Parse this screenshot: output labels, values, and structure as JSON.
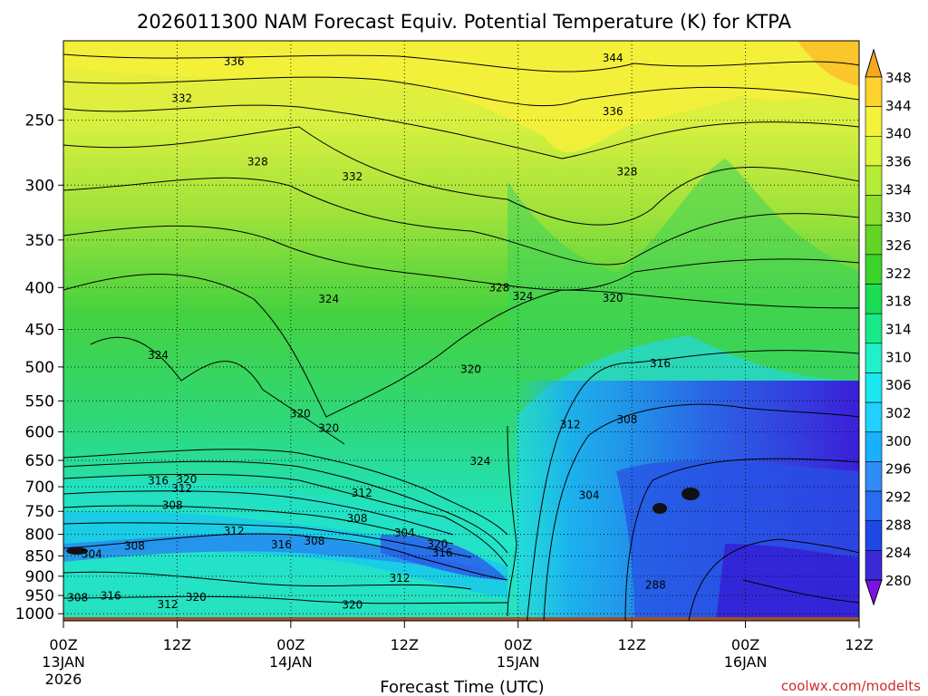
{
  "chart_data": {
    "type": "heatmap",
    "title": "2026011300 NAM Forecast Equiv. Potential Temperature (K) for KTPA",
    "xlabel": "Forecast Time (UTC)",
    "ylabel": "",
    "watermark": "coolwx.com/modelts",
    "x_ticks": [
      {
        "hour": 0,
        "label": "00Z",
        "date": "13JAN",
        "year": "2026"
      },
      {
        "hour": 12,
        "label": "12Z"
      },
      {
        "hour": 24,
        "label": "00Z",
        "date": "14JAN"
      },
      {
        "hour": 36,
        "label": "12Z"
      },
      {
        "hour": 48,
        "label": "00Z",
        "date": "15JAN"
      },
      {
        "hour": 60,
        "label": "12Z"
      },
      {
        "hour": 72,
        "label": "00Z",
        "date": "16JAN"
      },
      {
        "hour": 84,
        "label": "12Z"
      }
    ],
    "xlim": [
      0,
      84
    ],
    "y_ticks": [
      250,
      300,
      350,
      400,
      450,
      500,
      550,
      600,
      650,
      700,
      750,
      800,
      850,
      900,
      950,
      1000
    ],
    "ylim_hpa": [
      200,
      1020
    ],
    "colorbar_levels": [
      280,
      284,
      288,
      292,
      296,
      300,
      302,
      306,
      310,
      314,
      318,
      322,
      326,
      330,
      334,
      336,
      340,
      344,
      348
    ],
    "colorbar_colors": [
      "#7d12e8",
      "#3a2ad6",
      "#1e48e6",
      "#2a6cf0",
      "#2f8cf8",
      "#1ab0ff",
      "#20d0ff",
      "#19e8f0",
      "#1ff2c8",
      "#18ea8a",
      "#1add55",
      "#3ad42a",
      "#62d424",
      "#8ee02e",
      "#b4ec38",
      "#dcf43c",
      "#f5f23a",
      "#fdd22c",
      "#f4a820"
    ],
    "contour_labels": [
      {
        "text": "336",
        "hour": 18,
        "p": 212
      },
      {
        "text": "332",
        "hour": 12.5,
        "p": 235
      },
      {
        "text": "328",
        "hour": 20.5,
        "p": 281
      },
      {
        "text": "332",
        "hour": 30.5,
        "p": 293
      },
      {
        "text": "324",
        "hour": 28,
        "p": 413
      },
      {
        "text": "324",
        "hour": 10,
        "p": 484
      },
      {
        "text": "328",
        "hour": 46,
        "p": 400
      },
      {
        "text": "324",
        "hour": 48.5,
        "p": 410
      },
      {
        "text": "344",
        "hour": 58,
        "p": 210
      },
      {
        "text": "336",
        "hour": 58,
        "p": 244
      },
      {
        "text": "328",
        "hour": 59.5,
        "p": 289
      },
      {
        "text": "320",
        "hour": 58,
        "p": 412
      },
      {
        "text": "316",
        "hour": 63,
        "p": 495
      },
      {
        "text": "320",
        "hour": 43,
        "p": 503
      },
      {
        "text": "320",
        "hour": 25,
        "p": 570
      },
      {
        "text": "320",
        "hour": 28,
        "p": 594
      },
      {
        "text": "312",
        "hour": 53.5,
        "p": 588
      },
      {
        "text": "308",
        "hour": 59.5,
        "p": 580
      },
      {
        "text": "324",
        "hour": 44,
        "p": 652
      },
      {
        "text": "316",
        "hour": 10,
        "p": 688
      },
      {
        "text": "320",
        "hour": 13,
        "p": 686
      },
      {
        "text": "312",
        "hour": 12.5,
        "p": 703
      },
      {
        "text": "308",
        "hour": 11.5,
        "p": 737
      },
      {
        "text": "304",
        "hour": 55.5,
        "p": 717
      },
      {
        "text": "312",
        "hour": 31.5,
        "p": 712
      },
      {
        "text": "308",
        "hour": 31,
        "p": 765
      },
      {
        "text": "304",
        "hour": 36,
        "p": 797
      },
      {
        "text": "312",
        "hour": 18,
        "p": 793
      },
      {
        "text": "308",
        "hour": 7.5,
        "p": 827
      },
      {
        "text": "316",
        "hour": 23,
        "p": 824
      },
      {
        "text": "308",
        "hour": 26.5,
        "p": 815
      },
      {
        "text": "320",
        "hour": 39.5,
        "p": 823
      },
      {
        "text": "316",
        "hour": 40,
        "p": 843
      },
      {
        "text": "312",
        "hour": 35.5,
        "p": 905
      },
      {
        "text": "304",
        "hour": 3,
        "p": 846
      },
      {
        "text": "308",
        "hour": 1.5,
        "p": 956
      },
      {
        "text": "316",
        "hour": 5,
        "p": 951
      },
      {
        "text": "320",
        "hour": 14,
        "p": 955
      },
      {
        "text": "312",
        "hour": 11,
        "p": 974
      },
      {
        "text": "320",
        "hour": 30.5,
        "p": 976
      },
      {
        "text": "288",
        "hour": 62.5,
        "p": 922
      }
    ]
  }
}
